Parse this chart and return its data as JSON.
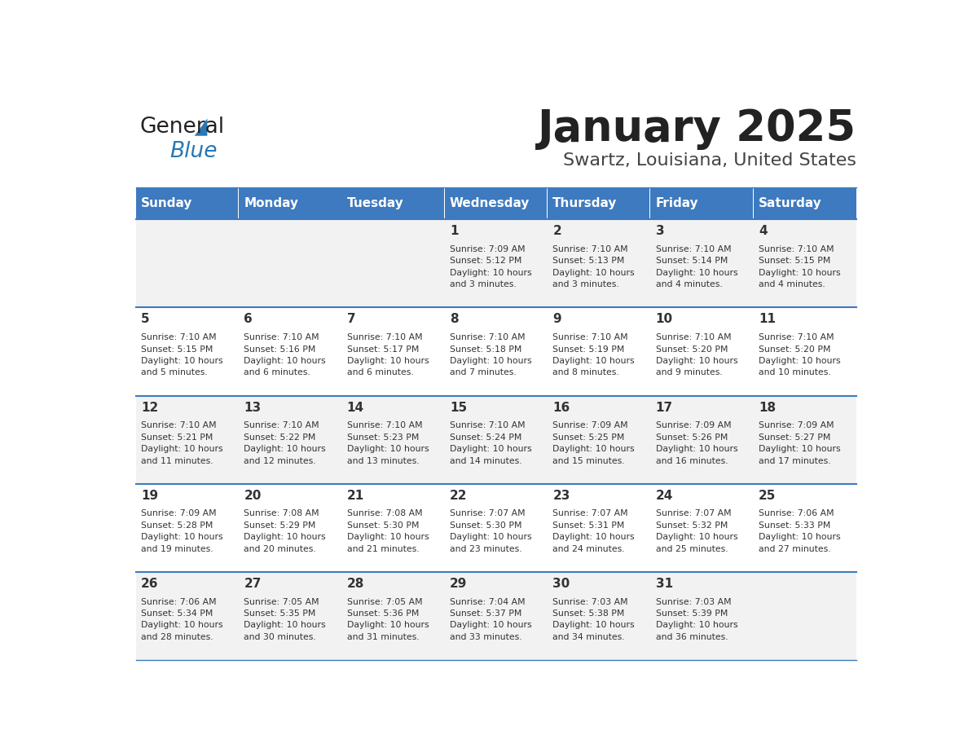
{
  "title": "January 2025",
  "subtitle": "Swartz, Louisiana, United States",
  "header_bg_color": "#3D7ABF",
  "header_text_color": "#FFFFFF",
  "day_names": [
    "Sunday",
    "Monday",
    "Tuesday",
    "Wednesday",
    "Thursday",
    "Friday",
    "Saturday"
  ],
  "cell_bg_even": "#F2F2F2",
  "cell_bg_odd": "#FFFFFF",
  "cell_line_color": "#3D7ABF",
  "day_num_color": "#333333",
  "info_text_color": "#333333",
  "background_color": "#FFFFFF",
  "logo_general_color": "#222222",
  "logo_blue_color": "#2778B5",
  "title_color": "#222222",
  "subtitle_color": "#444444",
  "calendar_data": [
    [
      {
        "day": null,
        "info": ""
      },
      {
        "day": null,
        "info": ""
      },
      {
        "day": null,
        "info": ""
      },
      {
        "day": 1,
        "info": "Sunrise: 7:09 AM\nSunset: 5:12 PM\nDaylight: 10 hours\nand 3 minutes."
      },
      {
        "day": 2,
        "info": "Sunrise: 7:10 AM\nSunset: 5:13 PM\nDaylight: 10 hours\nand 3 minutes."
      },
      {
        "day": 3,
        "info": "Sunrise: 7:10 AM\nSunset: 5:14 PM\nDaylight: 10 hours\nand 4 minutes."
      },
      {
        "day": 4,
        "info": "Sunrise: 7:10 AM\nSunset: 5:15 PM\nDaylight: 10 hours\nand 4 minutes."
      }
    ],
    [
      {
        "day": 5,
        "info": "Sunrise: 7:10 AM\nSunset: 5:15 PM\nDaylight: 10 hours\nand 5 minutes."
      },
      {
        "day": 6,
        "info": "Sunrise: 7:10 AM\nSunset: 5:16 PM\nDaylight: 10 hours\nand 6 minutes."
      },
      {
        "day": 7,
        "info": "Sunrise: 7:10 AM\nSunset: 5:17 PM\nDaylight: 10 hours\nand 6 minutes."
      },
      {
        "day": 8,
        "info": "Sunrise: 7:10 AM\nSunset: 5:18 PM\nDaylight: 10 hours\nand 7 minutes."
      },
      {
        "day": 9,
        "info": "Sunrise: 7:10 AM\nSunset: 5:19 PM\nDaylight: 10 hours\nand 8 minutes."
      },
      {
        "day": 10,
        "info": "Sunrise: 7:10 AM\nSunset: 5:20 PM\nDaylight: 10 hours\nand 9 minutes."
      },
      {
        "day": 11,
        "info": "Sunrise: 7:10 AM\nSunset: 5:20 PM\nDaylight: 10 hours\nand 10 minutes."
      }
    ],
    [
      {
        "day": 12,
        "info": "Sunrise: 7:10 AM\nSunset: 5:21 PM\nDaylight: 10 hours\nand 11 minutes."
      },
      {
        "day": 13,
        "info": "Sunrise: 7:10 AM\nSunset: 5:22 PM\nDaylight: 10 hours\nand 12 minutes."
      },
      {
        "day": 14,
        "info": "Sunrise: 7:10 AM\nSunset: 5:23 PM\nDaylight: 10 hours\nand 13 minutes."
      },
      {
        "day": 15,
        "info": "Sunrise: 7:10 AM\nSunset: 5:24 PM\nDaylight: 10 hours\nand 14 minutes."
      },
      {
        "day": 16,
        "info": "Sunrise: 7:09 AM\nSunset: 5:25 PM\nDaylight: 10 hours\nand 15 minutes."
      },
      {
        "day": 17,
        "info": "Sunrise: 7:09 AM\nSunset: 5:26 PM\nDaylight: 10 hours\nand 16 minutes."
      },
      {
        "day": 18,
        "info": "Sunrise: 7:09 AM\nSunset: 5:27 PM\nDaylight: 10 hours\nand 17 minutes."
      }
    ],
    [
      {
        "day": 19,
        "info": "Sunrise: 7:09 AM\nSunset: 5:28 PM\nDaylight: 10 hours\nand 19 minutes."
      },
      {
        "day": 20,
        "info": "Sunrise: 7:08 AM\nSunset: 5:29 PM\nDaylight: 10 hours\nand 20 minutes."
      },
      {
        "day": 21,
        "info": "Sunrise: 7:08 AM\nSunset: 5:30 PM\nDaylight: 10 hours\nand 21 minutes."
      },
      {
        "day": 22,
        "info": "Sunrise: 7:07 AM\nSunset: 5:30 PM\nDaylight: 10 hours\nand 23 minutes."
      },
      {
        "day": 23,
        "info": "Sunrise: 7:07 AM\nSunset: 5:31 PM\nDaylight: 10 hours\nand 24 minutes."
      },
      {
        "day": 24,
        "info": "Sunrise: 7:07 AM\nSunset: 5:32 PM\nDaylight: 10 hours\nand 25 minutes."
      },
      {
        "day": 25,
        "info": "Sunrise: 7:06 AM\nSunset: 5:33 PM\nDaylight: 10 hours\nand 27 minutes."
      }
    ],
    [
      {
        "day": 26,
        "info": "Sunrise: 7:06 AM\nSunset: 5:34 PM\nDaylight: 10 hours\nand 28 minutes."
      },
      {
        "day": 27,
        "info": "Sunrise: 7:05 AM\nSunset: 5:35 PM\nDaylight: 10 hours\nand 30 minutes."
      },
      {
        "day": 28,
        "info": "Sunrise: 7:05 AM\nSunset: 5:36 PM\nDaylight: 10 hours\nand 31 minutes."
      },
      {
        "day": 29,
        "info": "Sunrise: 7:04 AM\nSunset: 5:37 PM\nDaylight: 10 hours\nand 33 minutes."
      },
      {
        "day": 30,
        "info": "Sunrise: 7:03 AM\nSunset: 5:38 PM\nDaylight: 10 hours\nand 34 minutes."
      },
      {
        "day": 31,
        "info": "Sunrise: 7:03 AM\nSunset: 5:39 PM\nDaylight: 10 hours\nand 36 minutes."
      },
      {
        "day": null,
        "info": ""
      }
    ]
  ]
}
